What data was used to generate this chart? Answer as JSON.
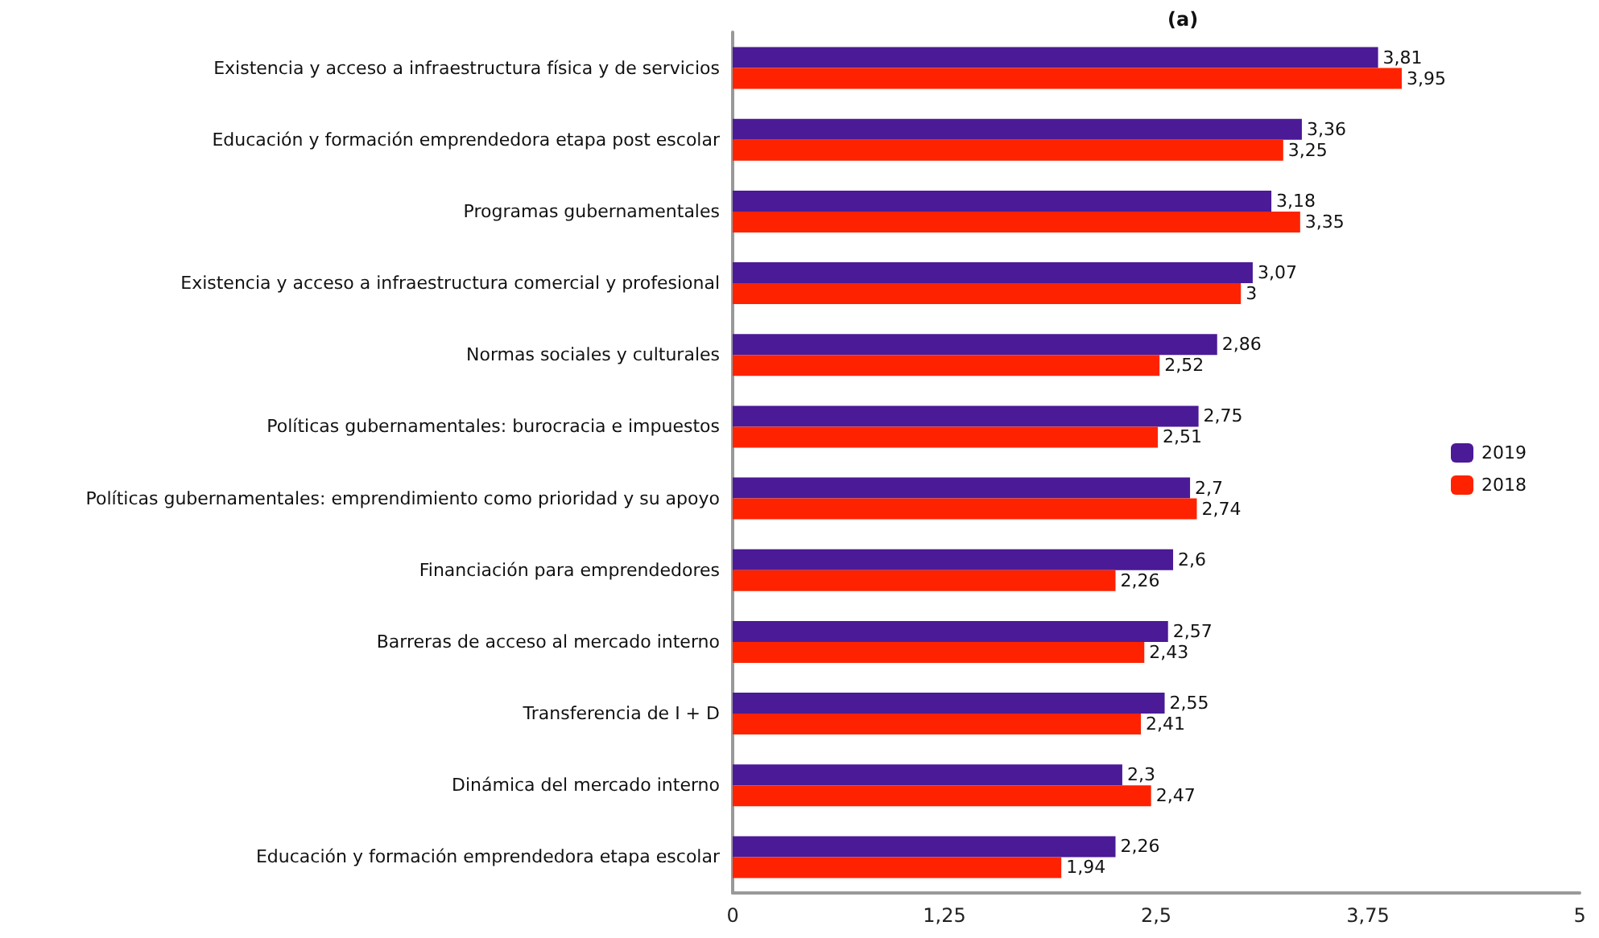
{
  "chart_data": {
    "type": "bar",
    "orientation": "horizontal",
    "title": "(a)",
    "categories": [
      "Existencia y acceso a infraestructura física y de servicios",
      "Educación y formación emprendedora etapa post escolar",
      "Programas gubernamentales",
      "Existencia y acceso a infraestructura comercial y profesional",
      "Normas sociales y culturales",
      "Políticas gubernamentales: burocracia e impuestos",
      "Políticas gubernamentales: emprendimiento como prioridad y su apoyo",
      "Financiación para emprendedores",
      "Barreras de acceso al mercado interno",
      "Transferencia de I + D",
      "Dinámica del mercado interno",
      "Educación y formación emprendedora etapa escolar"
    ],
    "series": [
      {
        "name": "2019",
        "color": "#4b1a96",
        "values": [
          3.81,
          3.36,
          3.18,
          3.07,
          2.86,
          2.75,
          2.7,
          2.6,
          2.57,
          2.55,
          2.3,
          2.26
        ],
        "value_labels": [
          "3,81",
          "3,36",
          "3,18",
          "3,07",
          "2,86",
          "2,75",
          "2,7",
          "2,6",
          "2,57",
          "2,55",
          "2,3",
          "2,26"
        ]
      },
      {
        "name": "2018",
        "color": "#ff2200",
        "values": [
          3.95,
          3.25,
          3.35,
          3,
          2.52,
          2.51,
          2.74,
          2.26,
          2.43,
          2.41,
          2.47,
          1.94
        ],
        "value_labels": [
          "3,95",
          "3,25",
          "3,35",
          "3",
          "2,52",
          "2,51",
          "2,74",
          "2,26",
          "2,43",
          "2,41",
          "2,47",
          "1,94"
        ]
      }
    ],
    "xlim": [
      0,
      5
    ],
    "xticks": [
      0,
      {
        "value": 1.25,
        "label": "1,25"
      },
      {
        "value": 2.5,
        "label": "2,5"
      },
      {
        "value": 3.75,
        "label": "3,75"
      },
      5
    ],
    "grid": false,
    "legend": "right"
  }
}
